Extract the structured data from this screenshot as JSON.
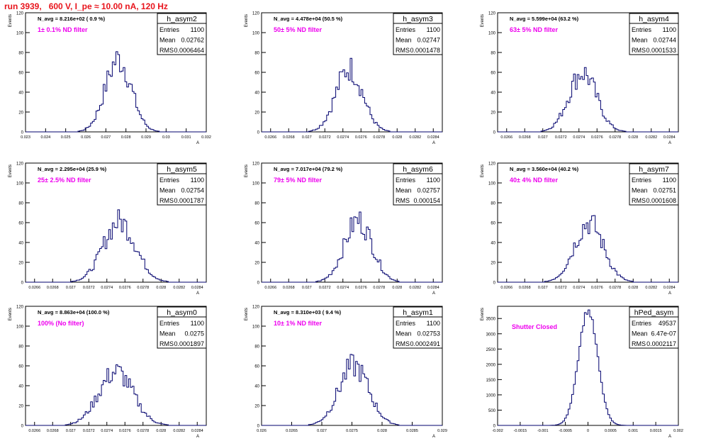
{
  "page_title": "run 3939,   600 V, I_pe ≈ 10.00 nA, 120 Hz",
  "colors": {
    "histogram_line": "#00006e",
    "filter_label": "#ee00ee",
    "title": "#e8141c",
    "frame": "#000000"
  },
  "chart_data": [
    {
      "type": "bar",
      "stats": {
        "name": "h_asym2",
        "entries": "1100",
        "mean": "0.02762",
        "rms": "0.0006464"
      },
      "navg": "N_avg = 8.216e+02 ( 0.9 %)",
      "filter_label": "1± 0.1% ND filter",
      "ylabel": "Events",
      "xlabel": "A",
      "xlim": [
        0.023,
        0.032
      ],
      "ylim": [
        0,
        120
      ],
      "xticks": [
        "0.023",
        "0.024",
        "0.025",
        "0.026",
        "0.027",
        "0.028",
        "0.029",
        "0.03",
        "0.031",
        "0.032"
      ],
      "yticks": [
        "0",
        "20",
        "40",
        "60",
        "80",
        "100",
        "120"
      ],
      "mean": 0.02762,
      "rms": 0.0006464,
      "peak": 73,
      "entries": 1100
    },
    {
      "type": "bar",
      "stats": {
        "name": "h_asym3",
        "entries": "1100",
        "mean": "0.02747",
        "rms": "0.0001478"
      },
      "navg": "N_avg = 4.478e+04 (50.5 %)",
      "filter_label": "50± 5% ND filter",
      "ylabel": "Events",
      "xlabel": "A",
      "xlim": [
        0.0265,
        0.0285
      ],
      "ylim": [
        0,
        120
      ],
      "xticks": [
        "0.0266",
        "0.0268",
        "0.027",
        "0.0272",
        "0.0274",
        "0.0276",
        "0.0278",
        "0.028",
        "0.0282",
        "0.0284"
      ],
      "yticks": [
        "0",
        "20",
        "40",
        "60",
        "80",
        "100",
        "120"
      ],
      "mean": 0.02747,
      "rms": 0.0001478,
      "peak": 64,
      "entries": 1100
    },
    {
      "type": "bar",
      "stats": {
        "name": "h_asym4",
        "entries": "1100",
        "mean": "0.02744",
        "rms": "0.0001533"
      },
      "navg": "N_avg = 5.599e+04 (63.2 %)",
      "filter_label": "63± 5% ND filter",
      "ylabel": "Events",
      "xlabel": "A",
      "xlim": [
        0.0265,
        0.0285
      ],
      "ylim": [
        0,
        120
      ],
      "xticks": [
        "0.0266",
        "0.0268",
        "0.027",
        "0.0272",
        "0.0274",
        "0.0276",
        "0.0278",
        "0.028",
        "0.0282",
        "0.0284"
      ],
      "yticks": [
        "0",
        "20",
        "40",
        "60",
        "80",
        "100",
        "120"
      ],
      "mean": 0.02744,
      "rms": 0.0001533,
      "peak": 60,
      "entries": 1100
    },
    {
      "type": "bar",
      "stats": {
        "name": "h_asym5",
        "entries": "1100",
        "mean": "0.02754",
        "rms": "0.0001787"
      },
      "navg": "N_avg = 2.295e+04 (25.9 %)",
      "filter_label": "25± 2.5% ND filter",
      "ylabel": "Events",
      "xlabel": "A",
      "xlim": [
        0.0265,
        0.0285
      ],
      "ylim": [
        0,
        120
      ],
      "xticks": [
        "0.0266",
        "0.0268",
        "0.027",
        "0.0272",
        "0.0274",
        "0.0276",
        "0.0278",
        "0.028",
        "0.0282",
        "0.0284"
      ],
      "yticks": [
        "0",
        "20",
        "40",
        "60",
        "80",
        "100",
        "120"
      ],
      "mean": 0.02754,
      "rms": 0.0001787,
      "peak": 61,
      "entries": 1100
    },
    {
      "type": "bar",
      "stats": {
        "name": "h_asym6",
        "entries": "1100",
        "mean": "0.02757",
        "rms": "0.000154"
      },
      "navg": "N_avg = 7.017e+04 (79.2 %)",
      "filter_label": "79± 5% ND filter",
      "ylabel": "Events",
      "xlabel": "A",
      "xlim": [
        0.0265,
        0.0285
      ],
      "ylim": [
        0,
        120
      ],
      "xticks": [
        "0.0266",
        "0.0268",
        "0.027",
        "0.0272",
        "0.0274",
        "0.0276",
        "0.0278",
        "0.028",
        "0.0282",
        "0.0284"
      ],
      "yticks": [
        "0",
        "20",
        "40",
        "60",
        "80",
        "100",
        "120"
      ],
      "mean": 0.02757,
      "rms": 0.000154,
      "peak": 62,
      "entries": 1100
    },
    {
      "type": "bar",
      "stats": {
        "name": "h_asym7",
        "entries": "1100",
        "mean": "0.02751",
        "rms": "0.0001608"
      },
      "navg": "N_avg = 3.560e+04 (40.2 %)",
      "filter_label": "40± 4% ND filter",
      "ylabel": "Events",
      "xlabel": "A",
      "xlim": [
        0.0265,
        0.0285
      ],
      "ylim": [
        0,
        120
      ],
      "xticks": [
        "0.0266",
        "0.0268",
        "0.027",
        "0.0272",
        "0.0274",
        "0.0276",
        "0.0278",
        "0.028",
        "0.0282",
        "0.0284"
      ],
      "yticks": [
        "0",
        "20",
        "40",
        "60",
        "80",
        "100",
        "120"
      ],
      "mean": 0.02751,
      "rms": 0.0001608,
      "peak": 60,
      "entries": 1100
    },
    {
      "type": "bar",
      "stats": {
        "name": "h_asym0",
        "entries": "1100",
        "mean": "0.0275",
        "rms": "0.0001897"
      },
      "navg": "N_avg = 8.863e+04 (100.0 %)",
      "filter_label": "100% (No filter)",
      "ylabel": "Events",
      "xlabel": "A",
      "xlim": [
        0.0265,
        0.0285
      ],
      "ylim": [
        0,
        120
      ],
      "xticks": [
        "0.0266",
        "0.0268",
        "0.027",
        "0.0272",
        "0.0274",
        "0.0276",
        "0.0278",
        "0.028",
        "0.0282",
        "0.0284"
      ],
      "yticks": [
        "0",
        "20",
        "40",
        "60",
        "80",
        "100",
        "120"
      ],
      "mean": 0.0275,
      "rms": 0.0001897,
      "peak": 54,
      "entries": 1100
    },
    {
      "type": "bar",
      "stats": {
        "name": "h_asym1",
        "entries": "1100",
        "mean": "0.02753",
        "rms": "0.0002491"
      },
      "navg": "N_avg = 8.310e+03 ( 9.4 %)",
      "filter_label": "10± 1% ND filter",
      "ylabel": "Events",
      "xlabel": "A",
      "xlim": [
        0.026,
        0.029
      ],
      "ylim": [
        0,
        120
      ],
      "xticks": [
        "0.026",
        "0.0265",
        "0.027",
        "0.0275",
        "0.028",
        "0.0285",
        "0.029"
      ],
      "yticks": [
        "0",
        "20",
        "40",
        "60",
        "80",
        "100",
        "120"
      ],
      "mean": 0.02753,
      "rms": 0.0002491,
      "peak": 60,
      "entries": 1100
    },
    {
      "type": "bar",
      "stats": {
        "name": "hPed_asym",
        "entries": "49537",
        "mean": "6.47e-07",
        "rms": "0.0002117"
      },
      "navg": "",
      "filter_label": "Shutter Closed",
      "ylabel": "Events",
      "xlabel": "A",
      "xlim": [
        -0.002,
        0.002
      ],
      "ylim": [
        0,
        3900
      ],
      "xticks": [
        "-0.002",
        "-0.0015",
        "-0.001",
        "-0.0005",
        "0",
        "0.0005",
        "0.001",
        "0.0015",
        "0.002"
      ],
      "yticks": [
        "0",
        "500",
        "1000",
        "1500",
        "2000",
        "2500",
        "3000",
        "3500"
      ],
      "mean": 6.5e-07,
      "rms": 0.0002117,
      "peak": 3760,
      "entries": 49537
    }
  ]
}
